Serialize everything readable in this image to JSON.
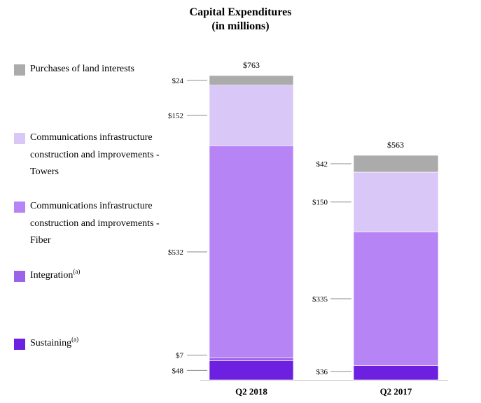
{
  "chart_data": {
    "type": "bar",
    "stacked": true,
    "title": "Capital Expenditures",
    "subtitle": "(in millions)",
    "categories": [
      "Q2 2018",
      "Q2 2017"
    ],
    "totals": [
      "$763",
      "$563"
    ],
    "series": [
      {
        "name": "Sustaining",
        "superscript": "(a)",
        "color": "#6d20e0",
        "values": [
          48,
          36
        ],
        "labels": [
          "$48",
          "$36"
        ]
      },
      {
        "name": "Integration",
        "superscript": "(a)",
        "color": "#9b63e8",
        "values": [
          7,
          0
        ],
        "labels": [
          "$7",
          ""
        ]
      },
      {
        "name": "Communications infrastructure construction and improvements - Fiber",
        "superscript": "",
        "color": "#b784f5",
        "values": [
          532,
          335
        ],
        "labels": [
          "$532",
          "$335"
        ]
      },
      {
        "name": "Communications infrastructure construction and improvements - Towers",
        "superscript": "",
        "color": "#d9c7f7",
        "values": [
          152,
          150
        ],
        "labels": [
          "$152",
          "$150"
        ]
      },
      {
        "name": "Purchases of land interests",
        "superscript": "",
        "color": "#ababab",
        "values": [
          24,
          42
        ],
        "labels": [
          "$24",
          "$42"
        ]
      }
    ],
    "ylim": [
      0,
      763
    ],
    "legend": "left"
  }
}
